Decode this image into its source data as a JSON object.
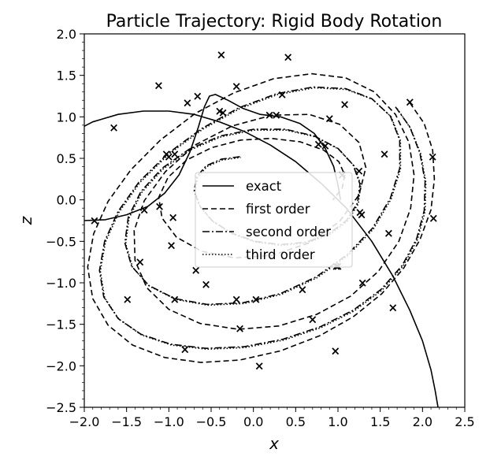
{
  "chart_data": {
    "type": "line",
    "title": "Particle Trajectory: Rigid Body Rotation",
    "xlabel": "x",
    "ylabel": "z",
    "xlim": [
      -2.0,
      2.5
    ],
    "ylim": [
      -2.5,
      2.0
    ],
    "xticks": [
      "−2.0",
      "−1.5",
      "−1.0",
      "−0.5",
      "0.0",
      "0.5",
      "1.0",
      "1.5",
      "2.0",
      "2.5"
    ],
    "yticks": [
      "−2.5",
      "−2.0",
      "−1.5",
      "−1.0",
      "−0.5",
      "0.0",
      "0.5",
      "1.0",
      "1.5",
      "2.0"
    ],
    "grid": false,
    "legend_position": "center",
    "series": [
      {
        "name": "exact",
        "style": "solid",
        "color": "#000000",
        "x": [
          -2.2,
          -1.9,
          -1.6,
          -1.3,
          -1.0,
          -0.7,
          -0.4,
          -0.1,
          0.2,
          0.5,
          0.8,
          1.1,
          1.4,
          1.65,
          1.85,
          2.0,
          2.1,
          2.15,
          2.2
        ],
        "y": [
          0.78,
          0.94,
          1.03,
          1.07,
          1.07,
          1.03,
          0.94,
          0.82,
          0.66,
          0.46,
          0.2,
          -0.1,
          -0.5,
          -0.92,
          -1.33,
          -1.7,
          -2.05,
          -2.3,
          -2.6
        ]
      },
      {
        "name": "exact",
        "style": "solid",
        "color": "#000000",
        "x": [
          -2.0,
          -1.75,
          -1.5,
          -1.25,
          -1.05,
          -0.88,
          -0.75,
          -0.65,
          -0.58,
          -0.52,
          -0.45,
          -0.3,
          -0.12,
          0.08,
          0.32,
          0.55,
          0.72,
          0.85,
          0.95,
          1.0,
          1.03
        ],
        "y": [
          -0.25,
          -0.24,
          -0.18,
          -0.08,
          0.08,
          0.3,
          0.58,
          0.88,
          1.12,
          1.25,
          1.27,
          1.2,
          1.1,
          1.03,
          1.0,
          0.92,
          0.8,
          0.62,
          0.4,
          0.18,
          0.0
        ]
      },
      {
        "name": "first order",
        "style": "dashed",
        "color": "#000000",
        "x": [
          1.85,
          2.02,
          2.12,
          2.14,
          2.1,
          1.97,
          1.78,
          1.52,
          1.18,
          0.78,
          0.32,
          -0.16,
          -0.62,
          -1.05,
          -1.43,
          -1.72,
          -1.9,
          -1.96,
          -1.89,
          -1.72,
          -1.45,
          -1.1,
          -0.69,
          -0.23,
          0.24,
          0.69,
          1.09,
          1.43,
          1.68,
          1.84,
          1.9,
          1.86,
          1.72,
          1.48,
          1.15,
          0.75,
          0.3,
          -0.18,
          -0.63,
          -1.0,
          -1.26,
          -1.4,
          -1.41,
          -1.29,
          -1.04,
          -0.69,
          -0.25,
          0.22,
          0.66,
          1.02,
          1.25,
          1.33,
          1.25,
          1.02,
          0.66,
          0.22,
          -0.22,
          -0.61,
          -0.91,
          -1.08,
          -1.12,
          -1.01,
          -0.79,
          -0.49,
          -0.15,
          0.21,
          0.55,
          0.83,
          1.01,
          1.08,
          1.05,
          0.94
        ],
        "y": [
          1.17,
          0.92,
          0.6,
          0.25,
          -0.12,
          -0.48,
          -0.82,
          -1.13,
          -1.41,
          -1.64,
          -1.82,
          -1.93,
          -1.96,
          -1.9,
          -1.75,
          -1.51,
          -1.19,
          -0.81,
          -0.41,
          -0.02,
          0.36,
          0.72,
          1.04,
          1.29,
          1.46,
          1.52,
          1.47,
          1.3,
          1.03,
          0.69,
          0.3,
          -0.1,
          -0.5,
          -0.86,
          -1.16,
          -1.38,
          -1.52,
          -1.56,
          -1.49,
          -1.32,
          -1.06,
          -0.73,
          -0.37,
          -0.01,
          0.34,
          0.66,
          0.89,
          1.02,
          1.03,
          0.91,
          0.69,
          0.39,
          0.06,
          -0.26,
          -0.52,
          -0.67,
          -0.7,
          -0.62,
          -0.45,
          -0.22,
          0.03,
          0.27,
          0.48,
          0.63,
          0.72,
          0.74,
          0.7,
          0.6,
          0.46,
          0.3,
          0.14,
          0.0
        ]
      },
      {
        "name": "second order",
        "style": "dashdot",
        "color": "#000000",
        "x": [
          1.68,
          1.85,
          1.97,
          2.03,
          2.02,
          1.93,
          1.76,
          1.51,
          1.18,
          0.79,
          0.35,
          -0.11,
          -0.56,
          -0.98,
          -1.33,
          -1.6,
          -1.77,
          -1.82,
          -1.76,
          -1.6,
          -1.35,
          -1.01,
          -0.61,
          -0.17,
          0.28,
          0.71,
          1.09,
          1.4,
          1.62,
          1.73,
          1.73,
          1.62,
          1.41,
          1.11,
          0.74,
          0.32,
          -0.12,
          -0.55,
          -0.93,
          -1.24,
          -1.44,
          -1.52,
          -1.48,
          -1.33,
          -1.08,
          -0.76,
          -0.39,
          0.0,
          0.38,
          0.72,
          1.0,
          1.18,
          1.26,
          1.23,
          1.1,
          0.89,
          0.62,
          0.32,
          0.02,
          -0.26,
          -0.49,
          -0.64,
          -0.7,
          -0.67,
          -0.56,
          -0.38,
          -0.16
        ],
        "y": [
          1.12,
          0.88,
          0.56,
          0.22,
          -0.13,
          -0.47,
          -0.79,
          -1.08,
          -1.33,
          -1.53,
          -1.68,
          -1.77,
          -1.79,
          -1.74,
          -1.62,
          -1.43,
          -1.17,
          -0.85,
          -0.5,
          -0.14,
          0.22,
          0.56,
          0.86,
          1.11,
          1.28,
          1.36,
          1.34,
          1.22,
          1.01,
          0.72,
          0.38,
          0.02,
          -0.34,
          -0.66,
          -0.93,
          -1.13,
          -1.24,
          -1.26,
          -1.19,
          -1.03,
          -0.8,
          -0.52,
          -0.21,
          0.1,
          0.38,
          0.61,
          0.77,
          0.85,
          0.85,
          0.77,
          0.62,
          0.42,
          0.19,
          -0.04,
          -0.25,
          -0.41,
          -0.51,
          -0.54,
          -0.5,
          -0.4,
          -0.25,
          -0.07,
          0.11,
          0.28,
          0.41,
          0.49,
          0.52
        ]
      },
      {
        "name": "third order",
        "style": "dotted",
        "color": "#000000",
        "x": [
          1.7,
          1.86,
          1.98,
          2.04,
          2.03,
          1.94,
          1.77,
          1.52,
          1.19,
          0.8,
          0.36,
          -0.1,
          -0.55,
          -0.97,
          -1.32,
          -1.59,
          -1.76,
          -1.81,
          -1.75,
          -1.59,
          -1.34,
          -1.0,
          -0.6,
          -0.16,
          0.29,
          0.72,
          1.1,
          1.41,
          1.63,
          1.74,
          1.74,
          1.63,
          1.42,
          1.12,
          0.75,
          0.33,
          -0.11,
          -0.54,
          -0.92,
          -1.23,
          -1.43,
          -1.51,
          -1.47,
          -1.32,
          -1.07,
          -0.75,
          -0.38,
          0.01,
          0.39,
          0.73,
          1.01,
          1.19,
          1.27,
          1.24,
          1.11,
          0.9,
          0.63,
          0.33,
          0.03,
          -0.25,
          -0.48,
          -0.63,
          -0.69,
          -0.66,
          -0.55,
          -0.37,
          -0.15
        ],
        "y": [
          1.1,
          0.86,
          0.55,
          0.21,
          -0.14,
          -0.48,
          -0.8,
          -1.09,
          -1.34,
          -1.54,
          -1.69,
          -1.78,
          -1.8,
          -1.75,
          -1.63,
          -1.44,
          -1.18,
          -0.86,
          -0.51,
          -0.15,
          0.21,
          0.55,
          0.85,
          1.1,
          1.27,
          1.35,
          1.33,
          1.21,
          1.0,
          0.71,
          0.37,
          0.01,
          -0.35,
          -0.67,
          -0.94,
          -1.14,
          -1.25,
          -1.27,
          -1.2,
          -1.04,
          -0.81,
          -0.53,
          -0.22,
          0.09,
          0.37,
          0.6,
          0.76,
          0.84,
          0.84,
          0.76,
          0.61,
          0.41,
          0.18,
          -0.05,
          -0.26,
          -0.42,
          -0.52,
          -0.55,
          -0.51,
          -0.41,
          -0.26,
          -0.08,
          0.1,
          0.27,
          0.4,
          0.48,
          0.51
        ]
      }
    ],
    "markers": {
      "symbol": "×",
      "x": [
        1.85,
        2.12,
        2.13,
        1.65,
        0.97,
        0.07,
        -0.81,
        -1.49,
        -1.88,
        -1.65,
        -1.12,
        -0.38,
        0.41,
        1.08,
        1.55,
        1.6,
        1.29,
        0.7,
        -0.16,
        -0.93,
        -1.34,
        -1.29,
        -0.93,
        -0.36,
        0.27,
        0.85,
        1.28,
        1.25,
        0.9,
        0.34,
        -0.2,
        -0.66,
        -1.03,
        -1.11,
        -0.97,
        -0.56,
        0.03,
        0.58,
        0.98,
        1.05,
        0.77,
        0.19,
        -0.4,
        -0.78,
        -1.0,
        -0.95,
        -0.68,
        -0.2,
        1.26,
        1.0
      ],
      "y": [
        1.18,
        0.52,
        -0.22,
        -1.3,
        -1.82,
        -2.0,
        -1.8,
        -1.2,
        -0.25,
        0.87,
        1.38,
        1.75,
        1.72,
        1.15,
        0.55,
        -0.4,
        -1.0,
        -1.44,
        -1.55,
        -1.2,
        -0.75,
        -0.12,
        0.55,
        1.05,
        1.02,
        0.65,
        -0.18,
        0.35,
        0.98,
        1.27,
        1.37,
        1.25,
        0.55,
        -0.08,
        -0.55,
        -1.02,
        -1.2,
        -1.08,
        -0.8,
        0.3,
        0.67,
        1.02,
        1.07,
        1.17,
        0.52,
        -0.21,
        -0.85,
        -1.2,
        -0.15,
        -0.8
      ]
    }
  }
}
